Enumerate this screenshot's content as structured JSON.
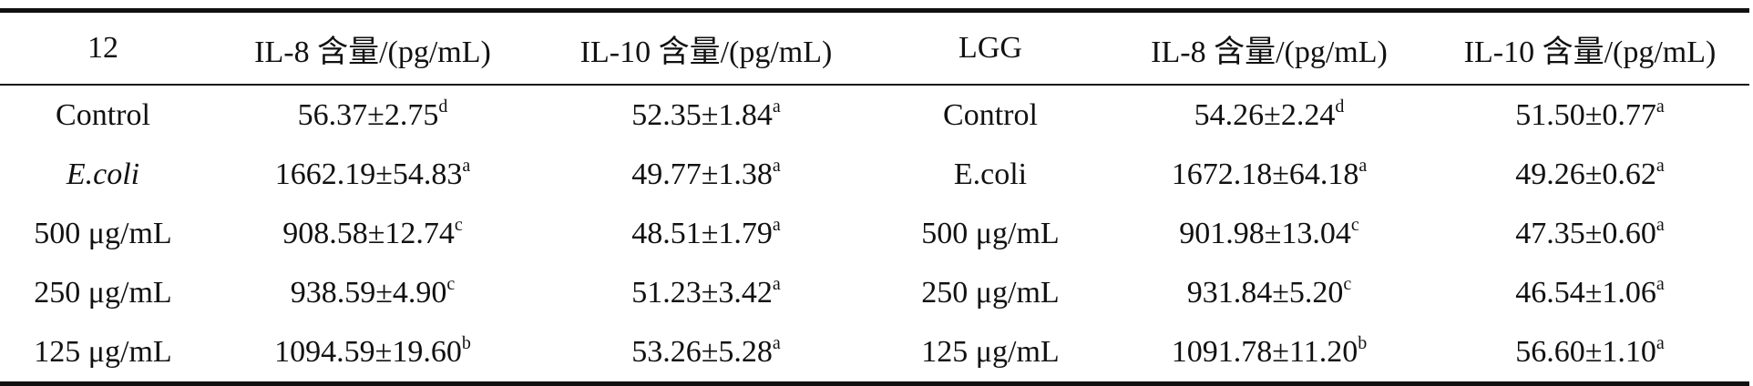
{
  "table": {
    "headers": [
      "12",
      "IL-8 含量/(pg/mL)",
      "IL-10 含量/(pg/mL)",
      "LGG",
      "IL-8 含量/(pg/mL)",
      "IL-10 含量/(pg/mL)"
    ],
    "rows": [
      [
        {
          "text": "Control",
          "sup": ""
        },
        {
          "text": "56.37±2.75",
          "sup": "d"
        },
        {
          "text": "52.35±1.84",
          "sup": "a"
        },
        {
          "text": "Control",
          "sup": ""
        },
        {
          "text": "54.26±2.24",
          "sup": "d"
        },
        {
          "text": "51.50±0.77",
          "sup": "a"
        }
      ],
      [
        {
          "text": "E.coli",
          "sup": ""
        },
        {
          "text": "1662.19±54.83",
          "sup": "a"
        },
        {
          "text": "49.77±1.38",
          "sup": "a"
        },
        {
          "text": "E.coli",
          "sup": ""
        },
        {
          "text": "1672.18±64.18",
          "sup": "a"
        },
        {
          "text": "49.26±0.62",
          "sup": "a"
        }
      ],
      [
        {
          "text": "500 μg/mL",
          "sup": ""
        },
        {
          "text": "908.58±12.74",
          "sup": "c"
        },
        {
          "text": "48.51±1.79",
          "sup": "a"
        },
        {
          "text": "500 μg/mL",
          "sup": ""
        },
        {
          "text": "901.98±13.04",
          "sup": "c"
        },
        {
          "text": "47.35±0.60",
          "sup": "a"
        }
      ],
      [
        {
          "text": "250 μg/mL",
          "sup": ""
        },
        {
          "text": "938.59±4.90",
          "sup": "c"
        },
        {
          "text": "51.23±3.42",
          "sup": "a"
        },
        {
          "text": "250 μg/mL",
          "sup": ""
        },
        {
          "text": "931.84±5.20",
          "sup": "c"
        },
        {
          "text": "46.54±1.06",
          "sup": "a"
        }
      ],
      [
        {
          "text": "125 μg/mL",
          "sup": ""
        },
        {
          "text": "1094.59±19.60",
          "sup": "b"
        },
        {
          "text": "53.26±5.28",
          "sup": "a"
        },
        {
          "text": "125 μg/mL",
          "sup": ""
        },
        {
          "text": "1091.78±11.20",
          "sup": "b"
        },
        {
          "text": "56.60±1.10",
          "sup": "a"
        }
      ]
    ]
  }
}
